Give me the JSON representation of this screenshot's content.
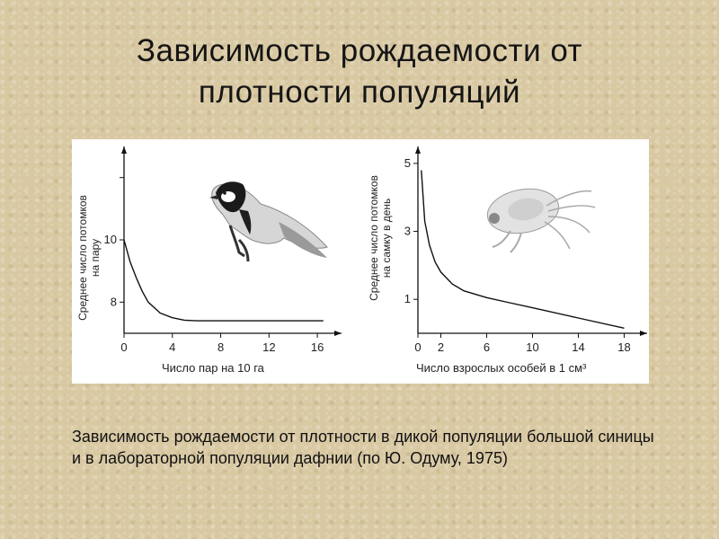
{
  "slide": {
    "title_line1": "Зависимость рождаемости от",
    "title_line2": "плотности популяций",
    "caption": "Зависимость рождаемости от плотности в дикой популяции большой синицы и в лабораторной популяции дафнии (по Ю. Одуму, 1975)"
  },
  "chart_data": [
    {
      "type": "line",
      "title": "",
      "ylabel_line1": "Среднее число потомков",
      "ylabel_line2": "на пару",
      "xlabel": "Число пар на 10 га",
      "xlim": [
        0,
        18
      ],
      "ylim": [
        7,
        13
      ],
      "x_ticks": [
        0,
        4,
        8,
        12,
        16
      ],
      "y_ticks": [
        8,
        10
      ],
      "icon": "great-tit-bird",
      "series": [
        {
          "x": [
            0,
            0.5,
            1,
            1.5,
            2,
            3,
            4,
            5,
            6,
            8,
            12,
            16.5
          ],
          "y": [
            10.0,
            9.3,
            8.8,
            8.35,
            8.0,
            7.65,
            7.5,
            7.42,
            7.4,
            7.4,
            7.4,
            7.4
          ]
        }
      ]
    },
    {
      "type": "line",
      "title": "",
      "ylabel_line1": "Среднее число потомков",
      "ylabel_line2": "на самку в день",
      "xlabel": "Число взрослых особей в 1 см³",
      "xlim": [
        0,
        20
      ],
      "ylim": [
        0,
        5.5
      ],
      "x_ticks": [
        0,
        2,
        6,
        10,
        14,
        18
      ],
      "y_ticks": [
        1,
        3,
        5
      ],
      "icon": "daphnia",
      "series": [
        {
          "x": [
            0.3,
            0.6,
            1,
            1.5,
            2,
            3,
            4,
            6,
            8,
            10,
            14,
            18
          ],
          "y": [
            4.8,
            3.3,
            2.6,
            2.1,
            1.8,
            1.45,
            1.25,
            1.05,
            0.9,
            0.75,
            0.45,
            0.15
          ]
        }
      ]
    }
  ]
}
